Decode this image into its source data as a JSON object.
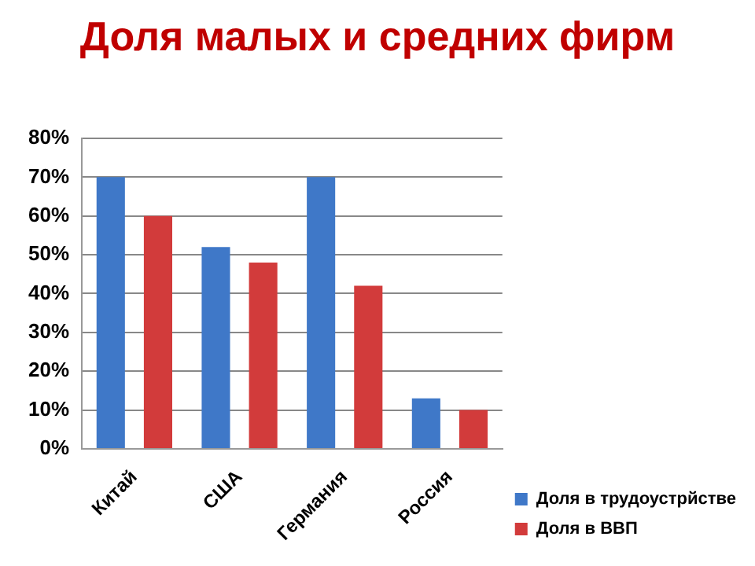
{
  "chart_data": {
    "type": "bar",
    "title": "Доля малых и средних фирм",
    "categories": [
      "Китай",
      "США",
      "Германия",
      "Россия"
    ],
    "series": [
      {
        "name": "Доля в трудоустрйстве",
        "color": "#3f78c8",
        "values": [
          70,
          52,
          70,
          13
        ]
      },
      {
        "name": "Доля в ВВП",
        "color": "#d23b3b",
        "values": [
          60,
          48,
          42,
          10
        ]
      }
    ],
    "ylim": [
      0,
      80
    ],
    "yticks": [
      {
        "value": 0,
        "label": "0%"
      },
      {
        "value": 10,
        "label": "10%"
      },
      {
        "value": 20,
        "label": "20%"
      },
      {
        "value": 30,
        "label": "30%"
      },
      {
        "value": 40,
        "label": "40%"
      },
      {
        "value": 50,
        "label": "50%"
      },
      {
        "value": 60,
        "label": "60%"
      },
      {
        "value": 70,
        "label": "70%"
      },
      {
        "value": 80,
        "label": "80%"
      }
    ],
    "grid": "y",
    "legend": "right"
  }
}
